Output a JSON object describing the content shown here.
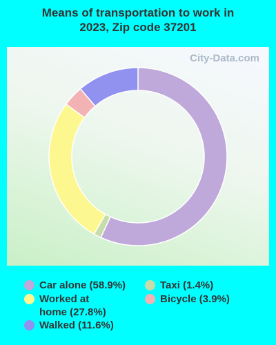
{
  "chart_data": {
    "type": "donut",
    "title": "Means of transportation to work in 2023, Zip code 37201",
    "watermark": "City-Data.com",
    "categories": [
      "Car alone",
      "Taxi",
      "Worked at home",
      "Bicycle",
      "Walked"
    ],
    "legend_labels": [
      "Car alone (58.9%)",
      "Taxi (1.4%)",
      "Worked at home (27.8%)",
      "Bicycle (3.9%)",
      "Walked (11.6%)"
    ],
    "values": [
      58.9,
      1.4,
      27.8,
      3.9,
      11.6
    ],
    "colors": [
      "#bfa8da",
      "#c6dcaa",
      "#fdf78f",
      "#f3b2b4",
      "#9191ef"
    ]
  }
}
